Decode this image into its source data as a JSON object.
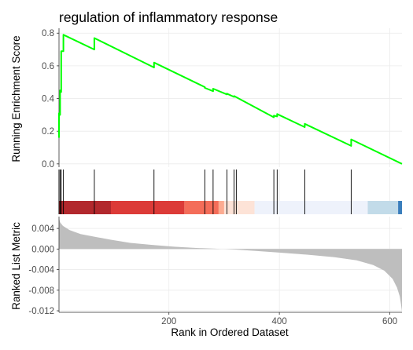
{
  "chart_data": {
    "type": "line",
    "title": "regulation of inflammatory response",
    "xlabel": "Rank in Ordered Dataset",
    "xlim": [
      1,
      622
    ],
    "x_ticks": [
      200,
      400,
      600
    ],
    "grid": true,
    "running_enrichment": {
      "ylabel": "Running Enrichment Score",
      "ylim": [
        -0.02,
        0.83
      ],
      "y_ticks": [
        0.0,
        0.2,
        0.4,
        0.6,
        0.8
      ],
      "y_tick_labels": [
        "0.0",
        "0.2",
        "0.4",
        "0.6",
        "0.8"
      ],
      "line_color": "#00ff00",
      "points": [
        {
          "x": 1,
          "y": 0.16
        },
        {
          "x": 1,
          "y": 0.31
        },
        {
          "x": 3,
          "y": 0.3
        },
        {
          "x": 3,
          "y": 0.45
        },
        {
          "x": 5,
          "y": 0.44
        },
        {
          "x": 5,
          "y": 0.69
        },
        {
          "x": 9,
          "y": 0.69
        },
        {
          "x": 9,
          "y": 0.79
        },
        {
          "x": 65,
          "y": 0.7
        },
        {
          "x": 65,
          "y": 0.77
        },
        {
          "x": 173,
          "y": 0.59
        },
        {
          "x": 173,
          "y": 0.62
        },
        {
          "x": 265,
          "y": 0.47
        },
        {
          "x": 265,
          "y": 0.465
        },
        {
          "x": 280,
          "y": 0.445
        },
        {
          "x": 280,
          "y": 0.46
        },
        {
          "x": 305,
          "y": 0.425
        },
        {
          "x": 305,
          "y": 0.43
        },
        {
          "x": 318,
          "y": 0.41
        },
        {
          "x": 318,
          "y": 0.415
        },
        {
          "x": 390,
          "y": 0.285
        },
        {
          "x": 390,
          "y": 0.295
        },
        {
          "x": 396,
          "y": 0.29
        },
        {
          "x": 396,
          "y": 0.305
        },
        {
          "x": 446,
          "y": 0.225
        },
        {
          "x": 446,
          "y": 0.245
        },
        {
          "x": 530,
          "y": 0.11
        },
        {
          "x": 530,
          "y": 0.15
        },
        {
          "x": 622,
          "y": 0.0
        }
      ]
    },
    "hits": [
      1,
      3,
      5,
      9,
      65,
      173,
      265,
      280,
      305,
      318,
      322,
      390,
      396,
      446,
      530
    ],
    "color_band": [
      {
        "from": 1,
        "to": 95,
        "color": "#b2282d"
      },
      {
        "from": 95,
        "to": 228,
        "color": "#dc3b38"
      },
      {
        "from": 228,
        "to": 290,
        "color": "#f46d59"
      },
      {
        "from": 290,
        "to": 300,
        "color": "#fcab91"
      },
      {
        "from": 300,
        "to": 355,
        "color": "#fde3d7"
      },
      {
        "from": 355,
        "to": 560,
        "color": "#eef2fb"
      },
      {
        "from": 560,
        "to": 615,
        "color": "#c2dbe9"
      },
      {
        "from": 615,
        "to": 622,
        "color": "#3a7ebc"
      }
    ],
    "ranked_list": {
      "ylabel": "Ranked List Metric",
      "ylim": [
        -0.0123,
        0.0063
      ],
      "y_ticks": [
        0.004,
        0.0,
        -0.004,
        -0.008,
        -0.012
      ],
      "y_tick_labels": [
        "0.004",
        "0.000",
        "-0.004",
        "-0.008",
        "-0.012"
      ],
      "fill_color": "#bebebe",
      "profile": [
        {
          "x": 1,
          "y": 0.006
        },
        {
          "x": 3,
          "y": 0.0052
        },
        {
          "x": 8,
          "y": 0.0045
        },
        {
          "x": 20,
          "y": 0.0037
        },
        {
          "x": 40,
          "y": 0.0029
        },
        {
          "x": 65,
          "y": 0.0024
        },
        {
          "x": 95,
          "y": 0.0018
        },
        {
          "x": 130,
          "y": 0.0012
        },
        {
          "x": 170,
          "y": 0.0008
        },
        {
          "x": 210,
          "y": 0.00045
        },
        {
          "x": 250,
          "y": 0.0002
        },
        {
          "x": 280,
          "y": 8e-05
        },
        {
          "x": 295,
          "y": 1e-05
        },
        {
          "x": 300,
          "y": 0.0
        },
        {
          "x": 320,
          "y": -0.0001
        },
        {
          "x": 360,
          "y": -0.0004
        },
        {
          "x": 400,
          "y": -0.0007
        },
        {
          "x": 450,
          "y": -0.0011
        },
        {
          "x": 500,
          "y": -0.0016
        },
        {
          "x": 540,
          "y": -0.0022
        },
        {
          "x": 570,
          "y": -0.0031
        },
        {
          "x": 590,
          "y": -0.0042
        },
        {
          "x": 605,
          "y": -0.0058
        },
        {
          "x": 613,
          "y": -0.0075
        },
        {
          "x": 618,
          "y": -0.0092
        },
        {
          "x": 620,
          "y": -0.0106
        },
        {
          "x": 622,
          "y": -0.0121
        }
      ]
    }
  }
}
